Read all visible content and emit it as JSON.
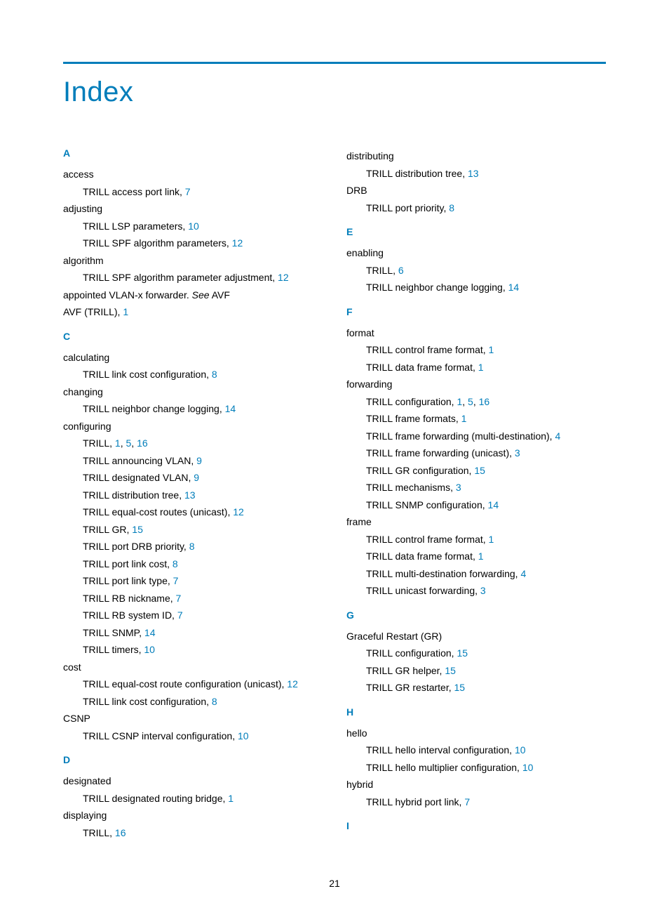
{
  "title": "Index",
  "page_number": "21",
  "colors": {
    "accent": "#007dba",
    "text": "#000000",
    "background": "#ffffff"
  },
  "left": {
    "A": {
      "letter": "A",
      "entries": [
        {
          "term": "access",
          "subs": [
            {
              "t": "TRILL access port link, ",
              "p": "7"
            }
          ]
        },
        {
          "term": "adjusting",
          "subs": [
            {
              "t": "TRILL LSP parameters, ",
              "p": "10"
            },
            {
              "t": "TRILL SPF algorithm parameters, ",
              "p": "12"
            }
          ]
        },
        {
          "term": "algorithm",
          "subs": [
            {
              "t": "TRILL SPF algorithm parameter adjustment, ",
              "p": "12"
            }
          ]
        },
        {
          "term_html": "appointed VLAN-x forwarder. <span class=\"italic\">See</span> AVF"
        },
        {
          "term": "AVF (TRILL), ",
          "p": "1"
        }
      ]
    },
    "C": {
      "letter": "C",
      "entries": [
        {
          "term": "calculating",
          "subs": [
            {
              "t": "TRILL link cost configuration, ",
              "p": "8"
            }
          ]
        },
        {
          "term": "changing",
          "subs": [
            {
              "t": "TRILL neighbor change logging, ",
              "p": "14"
            }
          ]
        },
        {
          "term": "configuring",
          "subs": [
            {
              "t": "TRILL, ",
              "pp": [
                "1",
                "5",
                "16"
              ]
            },
            {
              "t": "TRILL announcing VLAN, ",
              "p": "9"
            },
            {
              "t": "TRILL designated VLAN, ",
              "p": "9"
            },
            {
              "t": "TRILL distribution tree, ",
              "p": "13"
            },
            {
              "t": "TRILL equal-cost routes (unicast), ",
              "p": "12"
            },
            {
              "t": "TRILL GR, ",
              "p": "15"
            },
            {
              "t": "TRILL port DRB priority, ",
              "p": "8"
            },
            {
              "t": "TRILL port link cost, ",
              "p": "8"
            },
            {
              "t": "TRILL port link type, ",
              "p": "7"
            },
            {
              "t": "TRILL RB nickname, ",
              "p": "7"
            },
            {
              "t": "TRILL RB system ID, ",
              "p": "7"
            },
            {
              "t": "TRILL SNMP, ",
              "p": "14"
            },
            {
              "t": "TRILL timers, ",
              "p": "10"
            }
          ]
        },
        {
          "term": "cost",
          "subs": [
            {
              "t": "TRILL equal-cost route configuration (unicast), ",
              "p": "12"
            },
            {
              "t": "TRILL link cost configuration, ",
              "p": "8"
            }
          ]
        },
        {
          "term": "CSNP",
          "subs": [
            {
              "t": "TRILL CSNP interval configuration, ",
              "p": "10"
            }
          ]
        }
      ]
    },
    "D": {
      "letter": "D",
      "entries": [
        {
          "term": "designated",
          "subs": [
            {
              "t": "TRILL designated routing bridge, ",
              "p": "1"
            }
          ]
        },
        {
          "term": "displaying",
          "subs": [
            {
              "t": "TRILL, ",
              "p": "16"
            }
          ]
        }
      ]
    }
  },
  "right": {
    "Dcont": {
      "entries": [
        {
          "term": "distributing",
          "subs": [
            {
              "t": "TRILL distribution tree, ",
              "p": "13"
            }
          ]
        },
        {
          "term": "DRB",
          "subs": [
            {
              "t": "TRILL port priority, ",
              "p": "8"
            }
          ]
        }
      ]
    },
    "E": {
      "letter": "E",
      "entries": [
        {
          "term": "enabling",
          "subs": [
            {
              "t": "TRILL, ",
              "p": "6"
            },
            {
              "t": "TRILL neighbor change logging, ",
              "p": "14"
            }
          ]
        }
      ]
    },
    "F": {
      "letter": "F",
      "entries": [
        {
          "term": "format",
          "subs": [
            {
              "t": "TRILL control frame format, ",
              "p": "1"
            },
            {
              "t": "TRILL data frame format, ",
              "p": "1"
            }
          ]
        },
        {
          "term": "forwarding",
          "subs": [
            {
              "t": "TRILL configuration, ",
              "pp": [
                "1",
                "5",
                "16"
              ]
            },
            {
              "t": "TRILL frame formats, ",
              "p": "1"
            },
            {
              "t": "TRILL frame forwarding (multi-destination), ",
              "p": "4"
            },
            {
              "t": "TRILL frame forwarding (unicast), ",
              "p": "3"
            },
            {
              "t": "TRILL GR configuration, ",
              "p": "15"
            },
            {
              "t": "TRILL mechanisms, ",
              "p": "3"
            },
            {
              "t": "TRILL SNMP configuration, ",
              "p": "14"
            }
          ]
        },
        {
          "term": "frame",
          "subs": [
            {
              "t": "TRILL control frame format, ",
              "p": "1"
            },
            {
              "t": "TRILL data frame format, ",
              "p": "1"
            },
            {
              "t": "TRILL multi-destination forwarding, ",
              "p": "4"
            },
            {
              "t": "TRILL unicast forwarding, ",
              "p": "3"
            }
          ]
        }
      ]
    },
    "G": {
      "letter": "G",
      "entries": [
        {
          "term": "Graceful Restart (GR)",
          "subs": [
            {
              "t": "TRILL configuration, ",
              "p": "15"
            },
            {
              "t": "TRILL GR helper, ",
              "p": "15"
            },
            {
              "t": "TRILL GR restarter, ",
              "p": "15"
            }
          ]
        }
      ]
    },
    "H": {
      "letter": "H",
      "entries": [
        {
          "term": "hello",
          "subs": [
            {
              "t": "TRILL hello interval configuration, ",
              "p": "10"
            },
            {
              "t": "TRILL hello multiplier configuration, ",
              "p": "10"
            }
          ]
        },
        {
          "term": "hybrid",
          "subs": [
            {
              "t": "TRILL hybrid port link, ",
              "p": "7"
            }
          ]
        }
      ]
    },
    "I": {
      "letter": "I",
      "entries": []
    }
  }
}
